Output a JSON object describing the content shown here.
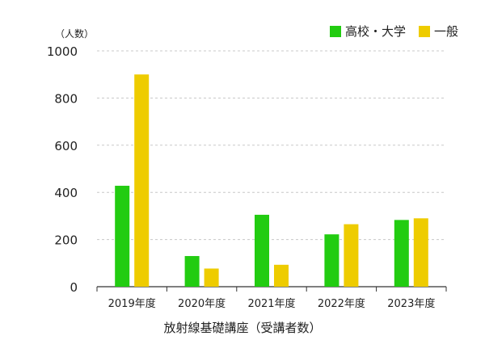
{
  "chart_data": {
    "type": "bar",
    "title": "",
    "unit_label": "（人数）",
    "xlabel": "放射線基礎講座（受講者数）",
    "ylabel": "",
    "ylim": [
      0,
      1000
    ],
    "yticks": [
      0,
      200,
      400,
      600,
      800,
      1000
    ],
    "grid": true,
    "legend_position": "top-right",
    "categories": [
      "2019年度",
      "2020年度",
      "2021年度",
      "2022年度",
      "2023年度"
    ],
    "series": [
      {
        "name": "高校・大学",
        "color": "#22cc11",
        "values": [
          428,
          130,
          305,
          222,
          283
        ]
      },
      {
        "name": "一般",
        "color": "#eecc00",
        "values": [
          900,
          77,
          93,
          265,
          290
        ]
      }
    ]
  }
}
